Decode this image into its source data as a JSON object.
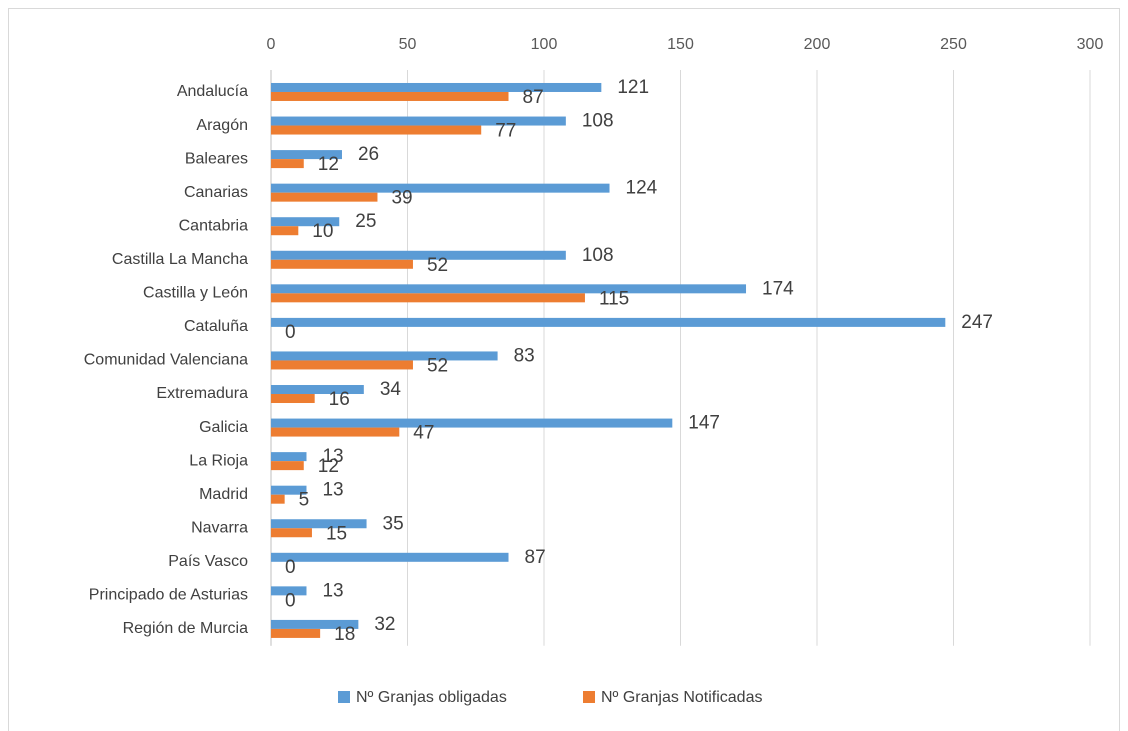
{
  "chart_data": {
    "type": "bar",
    "orientation": "horizontal",
    "categories": [
      "Andalucía",
      "Aragón",
      "Baleares",
      "Canarias",
      "Cantabria",
      "Castilla La Mancha",
      "Castilla y León",
      "Cataluña",
      "Comunidad Valenciana",
      "Extremadura",
      "Galicia",
      "La Rioja",
      "Madrid",
      "Navarra",
      "País Vasco",
      "Principado de Asturias",
      "Región de Murcia"
    ],
    "series": [
      {
        "name": "Nº Granjas obligadas",
        "color": "#5b9bd5",
        "values": [
          121,
          108,
          26,
          124,
          25,
          108,
          174,
          247,
          83,
          34,
          147,
          13,
          13,
          35,
          87,
          13,
          32
        ]
      },
      {
        "name": "Nº Granjas Notificadas",
        "color": "#ed7d31",
        "values": [
          87,
          77,
          12,
          39,
          10,
          52,
          115,
          0,
          52,
          16,
          47,
          12,
          5,
          15,
          0,
          0,
          18
        ]
      }
    ],
    "xlim": [
      0,
      300
    ],
    "xticks": [
      0,
      50,
      100,
      150,
      200,
      250,
      300
    ],
    "grid": true,
    "legend": "bottom"
  }
}
